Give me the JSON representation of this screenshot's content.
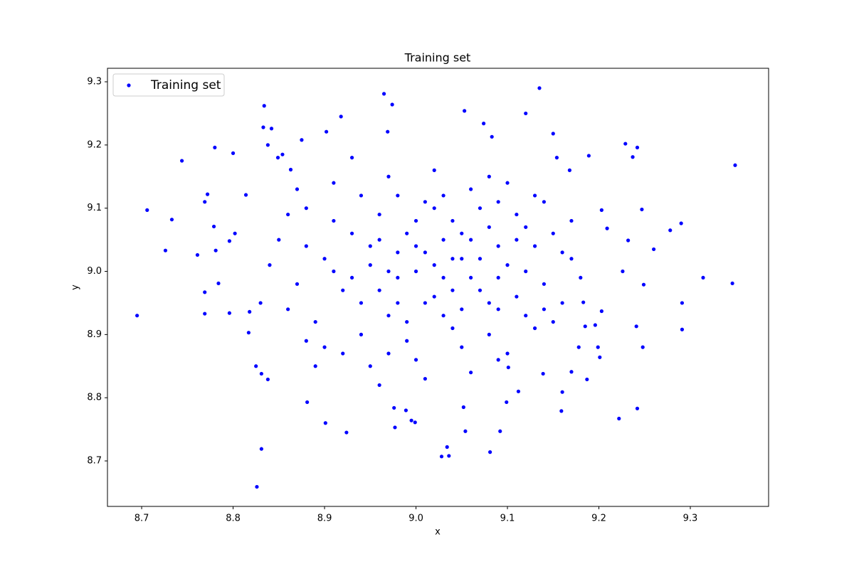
{
  "chart_data": {
    "type": "scatter",
    "title": "Training set",
    "x_label": "x",
    "y_label": "y",
    "xlim": [
      8.6626,
      9.3856
    ],
    "ylim": [
      8.628,
      9.3214
    ],
    "xticks": [
      8.7,
      8.8,
      8.9,
      {
        "value": 9,
        "label": "9.0"
      },
      9.1,
      9.2,
      9.3
    ],
    "yticks": [
      8.7,
      8.8,
      8.9,
      {
        "value": 9,
        "label": "9.0"
      },
      9.1,
      9.2,
      9.3
    ],
    "legend": "upper left",
    "series": [
      {
        "name": "Training set",
        "color": "blue",
        "x": [
          8.695,
          8.706,
          8.733,
          8.726,
          8.744,
          8.761,
          8.769,
          8.772,
          8.769,
          8.769,
          8.78,
          8.779,
          8.781,
          8.784,
          8.796,
          8.8,
          8.796,
          8.802,
          8.814,
          8.817,
          8.818,
          8.825,
          8.831,
          8.826,
          8.834,
          8.833,
          8.838,
          8.842,
          8.831,
          8.838,
          8.854,
          8.849,
          8.863,
          8.875,
          8.881,
          8.901,
          8.924,
          8.902,
          8.918,
          8.965,
          8.974,
          8.969,
          8.976,
          8.977,
          8.989,
          8.995,
          8.999,
          9.028,
          9.036,
          9.034,
          9.053,
          9.054,
          9.052,
          9.074,
          9.083,
          9.081,
          9.092,
          9.099,
          9.12,
          9.135,
          9.15,
          9.154,
          9.159,
          9.168,
          9.17,
          9.189,
          9.187,
          9.203,
          9.209,
          9.222,
          9.226,
          9.229,
          9.232,
          9.237,
          9.242,
          9.242,
          9.241,
          9.247,
          9.248,
          9.249,
          9.26,
          9.278,
          9.29,
          9.291,
          9.291,
          9.314,
          9.346,
          9.349,
          9.183,
          9.185,
          9.196,
          9.199,
          9.201,
          9.203,
          9.178,
          9.16,
          9.139,
          9.112,
          9.101,
          9.09,
          8.85,
          8.87,
          8.88,
          8.89,
          8.9,
          8.91,
          8.92,
          8.93,
          8.94,
          8.95,
          8.96,
          8.97,
          8.98,
          8.99,
          9.0,
          9.01,
          9.02,
          9.03,
          9.04,
          9.05,
          9.06,
          9.07,
          9.08,
          9.09,
          9.1,
          9.11,
          9.12,
          9.13,
          9.14,
          9.15,
          9.16,
          9.17,
          8.86,
          8.88,
          8.9,
          8.91,
          8.93,
          8.94,
          8.95,
          8.96,
          8.97,
          8.98,
          8.99,
          9.0,
          9.01,
          9.02,
          9.03,
          9.04,
          9.05,
          9.06,
          9.07,
          9.08,
          9.09,
          9.1,
          9.11,
          9.12,
          9.13,
          9.14,
          9.16,
          9.18,
          8.84,
          8.87,
          8.89,
          8.92,
          8.93,
          8.95,
          8.96,
          8.97,
          8.98,
          8.99,
          9.0,
          9.01,
          9.02,
          9.03,
          9.04,
          9.05,
          9.06,
          9.07,
          9.08,
          9.09,
          9.1,
          9.11,
          9.13,
          9.15,
          9.17,
          8.83,
          8.86,
          8.88,
          8.91,
          8.94,
          8.96,
          8.97,
          8.98,
          9.0,
          9.01,
          9.02,
          9.03,
          9.04,
          9.05,
          9.06,
          9.08,
          9.09,
          9.12,
          9.14
        ],
        "y": [
          8.93,
          9.097,
          9.082,
          9.033,
          9.175,
          9.026,
          9.11,
          9.122,
          8.967,
          8.933,
          9.196,
          9.071,
          9.033,
          8.981,
          8.934,
          9.187,
          9.048,
          9.06,
          9.121,
          8.903,
          8.936,
          8.85,
          8.719,
          8.659,
          9.262,
          9.228,
          9.2,
          9.226,
          8.838,
          8.829,
          9.185,
          9.18,
          9.161,
          9.208,
          8.793,
          8.76,
          8.745,
          9.221,
          9.245,
          9.281,
          9.264,
          9.221,
          8.784,
          8.753,
          8.78,
          8.764,
          8.761,
          8.707,
          8.708,
          8.722,
          9.254,
          8.747,
          8.785,
          9.234,
          9.213,
          8.714,
          8.747,
          8.793,
          9.25,
          9.29,
          9.218,
          9.18,
          8.779,
          9.16,
          8.841,
          9.183,
          8.829,
          9.097,
          9.068,
          8.767,
          9.0,
          9.202,
          9.049,
          9.181,
          9.196,
          8.783,
          8.913,
          9.098,
          8.88,
          8.979,
          9.035,
          9.065,
          9.076,
          8.95,
          8.908,
          8.99,
          8.981,
          9.168,
          8.951,
          8.913,
          8.915,
          8.88,
          8.864,
          8.937,
          8.88,
          8.809,
          8.838,
          8.81,
          8.848,
          8.86,
          9.05,
          8.98,
          9.1,
          8.92,
          9.02,
          9.14,
          8.87,
          9.06,
          8.95,
          9.01,
          9.09,
          8.93,
          9.03,
          8.89,
          9.0,
          9.11,
          8.96,
          9.05,
          8.91,
          9.02,
          9.13,
          8.97,
          9.07,
          8.94,
          9.01,
          9.09,
          8.93,
          9.04,
          8.98,
          9.06,
          8.95,
          9.02,
          8.94,
          9.04,
          8.88,
          9.08,
          8.99,
          9.12,
          8.85,
          8.97,
          9.15,
          8.95,
          9.06,
          8.86,
          9.03,
          9.16,
          8.93,
          9.08,
          8.88,
          8.99,
          9.1,
          8.9,
          9.04,
          9.14,
          8.96,
          9.0,
          8.91,
          9.11,
          9.03,
          8.99,
          9.01,
          9.13,
          8.85,
          8.97,
          9.18,
          9.04,
          8.82,
          9.0,
          9.12,
          8.92,
          9.08,
          8.83,
          9.01,
          9.12,
          8.97,
          9.06,
          8.84,
          9.02,
          9.15,
          8.99,
          8.87,
          9.05,
          9.12,
          8.92,
          9.08,
          8.95,
          9.09,
          8.89,
          9.0,
          8.9,
          9.05,
          8.87,
          8.99,
          9.04,
          8.95,
          9.1,
          8.99,
          9.02,
          8.94,
          9.05,
          8.95,
          9.11,
          9.07,
          8.94
        ]
      }
    ]
  }
}
